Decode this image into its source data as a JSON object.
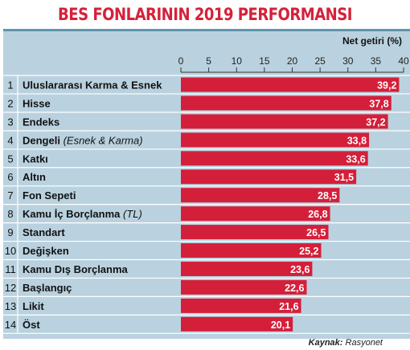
{
  "title": "BES FONLARININ 2019 PERFORMANSI",
  "source_label": "Kaynak:",
  "source_value": "Rasyonet",
  "colors": {
    "title": "#d5213a",
    "bar": "#d41f3a",
    "panel": "#bad2df",
    "rule": "#5f95ae"
  },
  "chart_data": {
    "type": "bar",
    "orientation": "horizontal",
    "title": "BES FONLARININ 2019 PERFORMANSI",
    "xlabel": "Net getiri (%)",
    "ylabel": "",
    "xlim": [
      0,
      40
    ],
    "xticks": [
      0,
      5,
      10,
      15,
      20,
      25,
      30,
      35,
      40
    ],
    "categories": [
      {
        "rank": "1",
        "name": "Uluslararası Karma & Esnek",
        "note": ""
      },
      {
        "rank": "2",
        "name": "Hisse",
        "note": ""
      },
      {
        "rank": "3",
        "name": "Endeks",
        "note": ""
      },
      {
        "rank": "4",
        "name": "Dengeli",
        "note": "(Esnek & Karma)"
      },
      {
        "rank": "5",
        "name": "Katkı",
        "note": ""
      },
      {
        "rank": "6",
        "name": "Altın",
        "note": ""
      },
      {
        "rank": "7",
        "name": "Fon Sepeti",
        "note": ""
      },
      {
        "rank": "8",
        "name": "Kamu İç Borçlanma",
        "note": "(TL)"
      },
      {
        "rank": "9",
        "name": "Standart",
        "note": ""
      },
      {
        "rank": "10",
        "name": "Değişken",
        "note": ""
      },
      {
        "rank": "11",
        "name": "Kamu Dış Borçlanma",
        "note": ""
      },
      {
        "rank": "12",
        "name": "Başlangıç",
        "note": ""
      },
      {
        "rank": "13",
        "name": "Likit",
        "note": ""
      },
      {
        "rank": "14",
        "name": "Öst",
        "note": ""
      }
    ],
    "values": [
      39.2,
      37.8,
      37.2,
      33.8,
      33.6,
      31.5,
      28.5,
      26.8,
      26.5,
      25.2,
      23.6,
      22.6,
      21.6,
      20.1
    ],
    "value_labels": [
      "39,2",
      "37,8",
      "37,2",
      "33,8",
      "33,6",
      "31,5",
      "28,5",
      "26,8",
      "26,5",
      "25,2",
      "23,6",
      "22,6",
      "21,6",
      "20,1"
    ],
    "grid": false,
    "legend": "none"
  }
}
